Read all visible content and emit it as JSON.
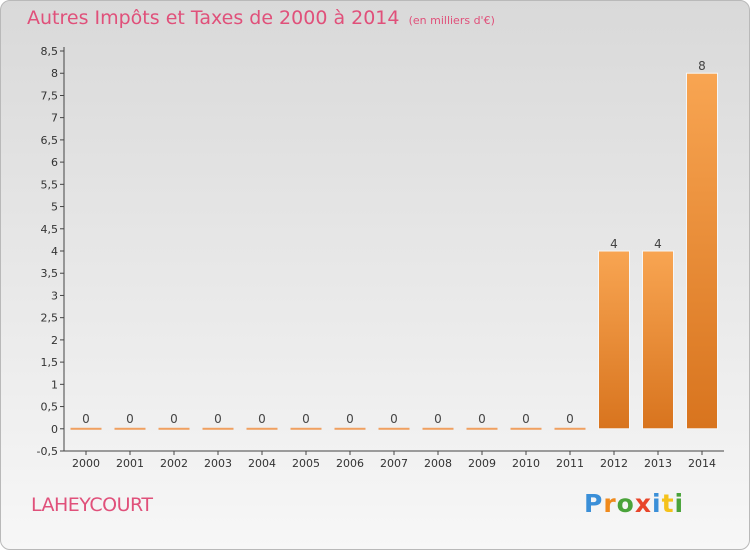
{
  "chart_data": {
    "type": "bar",
    "title": "Autres Impôts et Taxes de 2000 à 2014",
    "subtitle": "(en milliers d'€)",
    "categories": [
      "2000",
      "2001",
      "2002",
      "2003",
      "2004",
      "2005",
      "2006",
      "2007",
      "2008",
      "2009",
      "2010",
      "2011",
      "2012",
      "2013",
      "2014"
    ],
    "values": [
      0,
      0,
      0,
      0,
      0,
      0,
      0,
      0,
      0,
      0,
      0,
      0,
      4,
      4,
      8
    ],
    "value_labels": [
      "0",
      "0",
      "0",
      "0",
      "0",
      "0",
      "0",
      "0",
      "0",
      "0",
      "0",
      "0",
      "4",
      "4",
      "8"
    ],
    "ylim": [
      -0.5,
      8.5
    ],
    "yticks": [
      "-0,5",
      "0",
      "0,5",
      "1",
      "1,5",
      "2",
      "2,5",
      "3",
      "3,5",
      "4",
      "4,5",
      "5",
      "5,5",
      "6",
      "6,5",
      "7",
      "7,5",
      "8",
      "8,5"
    ],
    "ytick_values": [
      -0.5,
      0,
      0.5,
      1,
      1.5,
      2,
      2.5,
      3,
      3.5,
      4,
      4.5,
      5,
      5.5,
      6,
      6.5,
      7,
      7.5,
      8,
      8.5
    ],
    "bar_color": "#f08a2c",
    "grid": false
  },
  "footer": {
    "place": "LAHEYCOURT",
    "brand": "Proxiti"
  },
  "colors": {
    "accent": "#e0507a"
  }
}
